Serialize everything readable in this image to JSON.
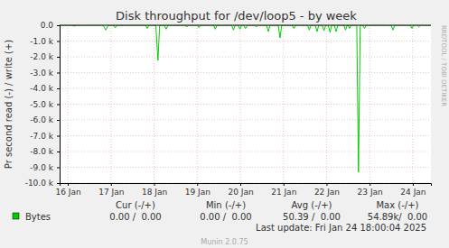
{
  "chart_data": {
    "type": "line",
    "title": "Disk throughput for /dev/loop5 - by week",
    "y_label": "Pr second read (-) / write (+)",
    "x": [
      -0.19,
      0.1,
      0.15,
      0.2,
      0.82,
      0.88,
      0.94,
      1.06,
      1.1,
      1.14,
      1.8,
      1.84,
      1.88,
      2.04,
      2.09,
      2.13,
      2.24,
      2.28,
      2.32,
      2.72,
      2.76,
      2.8,
      3.0,
      3.04,
      3.08,
      3.38,
      3.42,
      3.46,
      3.8,
      3.84,
      3.88,
      3.95,
      3.99,
      4.03,
      4.08,
      4.12,
      4.16,
      4.33,
      4.37,
      4.41,
      4.61,
      4.65,
      4.69,
      4.88,
      4.92,
      4.96,
      5.2,
      5.24,
      5.28,
      5.56,
      5.6,
      5.64,
      5.74,
      5.78,
      5.82,
      5.9,
      5.94,
      5.98,
      6.04,
      6.08,
      6.12,
      6.18,
      6.22,
      6.26,
      6.4,
      6.44,
      6.48,
      6.5,
      6.53,
      6.57,
      6.7,
      6.74,
      6.78,
      6.84,
      6.88,
      6.92,
      7.5,
      7.54,
      7.58,
      7.94,
      7.98,
      8.02,
      8.1,
      8.14,
      8.18,
      8.42
    ],
    "series": [
      {
        "name": "Bytes",
        "color": "#00cc00",
        "values": [
          0,
          0,
          -60,
          0,
          0,
          -300,
          0,
          0,
          -150,
          0,
          0,
          -200,
          0,
          0,
          -2230,
          0,
          0,
          -250,
          0,
          0,
          -100,
          0,
          0,
          -150,
          0,
          0,
          -250,
          0,
          0,
          -300,
          0,
          0,
          -250,
          0,
          0,
          -200,
          0,
          0,
          -100,
          0,
          0,
          -400,
          0,
          0,
          -800,
          0,
          0,
          -200,
          0,
          0,
          -300,
          0,
          0,
          -400,
          0,
          0,
          -350,
          0,
          0,
          -450,
          0,
          0,
          -400,
          0,
          0,
          -300,
          0,
          0,
          -200,
          0,
          0,
          -9310,
          0,
          0,
          -200,
          0,
          0,
          -300,
          0,
          0,
          -200,
          0,
          0,
          -100,
          0,
          0
        ]
      }
    ],
    "xlim": [
      -0.19,
      8.42
    ],
    "xticks": [
      {
        "value": 0,
        "label": "16 Jan"
      },
      {
        "value": 1,
        "label": "17 Jan"
      },
      {
        "value": 2,
        "label": "18 Jan"
      },
      {
        "value": 3,
        "label": "19 Jan"
      },
      {
        "value": 4,
        "label": "20 Jan"
      },
      {
        "value": 5,
        "label": "21 Jan"
      },
      {
        "value": 6,
        "label": "22 Jan"
      },
      {
        "value": 7,
        "label": "23 Jan"
      },
      {
        "value": 8,
        "label": "24 Jan"
      }
    ],
    "ylim": [
      -10000,
      0
    ],
    "yticks": [
      {
        "value": 0,
        "label": "0.0"
      },
      {
        "value": -1000,
        "label": "-1.0 k"
      },
      {
        "value": -2000,
        "label": "-2.0 k"
      },
      {
        "value": -3000,
        "label": "-3.0 k"
      },
      {
        "value": -4000,
        "label": "-4.0 k"
      },
      {
        "value": -5000,
        "label": "-5.0 k"
      },
      {
        "value": -6000,
        "label": "-6.0 k"
      },
      {
        "value": -7000,
        "label": "-7.0 k"
      },
      {
        "value": -8000,
        "label": "-8.0 k"
      },
      {
        "value": -9000,
        "label": "-9.0 k"
      },
      {
        "value": -10000,
        "label": "-10.0 k"
      }
    ],
    "grid": true,
    "legend_table": {
      "headers": [
        "Cur (-/+)",
        "Min (-/+)",
        "Avg (-/+)",
        "Max (-/+)"
      ],
      "rows": [
        [
          "0.00 /  0.00",
          "0.00 /  0.00",
          "50.39 /  0.00",
          "54.89k/  0.00"
        ]
      ]
    },
    "last_update": "Last update: Fri Jan 24 18:00:04 2025",
    "footer": "Munin 2.0.75",
    "side_label": "RRDTOOL / TOBI OETIKER"
  }
}
